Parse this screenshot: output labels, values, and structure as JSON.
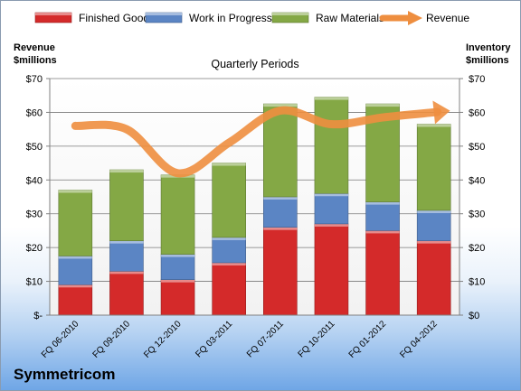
{
  "chart_data": {
    "type": "bar",
    "subtype": "stacked-bar-with-line",
    "title": "Quarterly Periods",
    "company": "Symmetricom",
    "left_axis_title": [
      "Revenue",
      "$millions"
    ],
    "right_axis_title": [
      "Inventory",
      "$millions"
    ],
    "left_ticks": [
      "$-",
      "$10",
      "$20",
      "$30",
      "$40",
      "$50",
      "$60",
      "$70"
    ],
    "right_ticks": [
      "$0",
      "$10",
      "$20",
      "$30",
      "$40",
      "$50",
      "$60",
      "$70"
    ],
    "ylim": [
      0,
      70
    ],
    "grid": true,
    "legend_position": "top",
    "categories": [
      "FQ 06-2010",
      "FQ 09-2010",
      "FQ 12-2010",
      "FQ 03-2011",
      "FQ 07-2011",
      "FQ 10-2011",
      "FQ 01-2012",
      "FQ 04-2012"
    ],
    "series": [
      {
        "name": "Finished Goods",
        "kind": "bar",
        "color": "#d42a2a",
        "values": [
          9,
          13,
          10.5,
          15.5,
          26,
          27,
          25,
          22
        ]
      },
      {
        "name": "Work in Progress",
        "kind": "bar",
        "color": "#5b85c4",
        "values": [
          8.5,
          9,
          7.5,
          7.5,
          9,
          9,
          8.5,
          9
        ]
      },
      {
        "name": "Raw Materials",
        "kind": "bar",
        "color": "#84a845",
        "values": [
          19.5,
          21,
          23.5,
          22,
          27.5,
          28.5,
          29,
          25.5
        ]
      },
      {
        "name": "Revenue",
        "kind": "line",
        "color": "#ee8e3f",
        "values": [
          56,
          55,
          42,
          51,
          60.5,
          56.5,
          58.5,
          60
        ]
      }
    ]
  }
}
